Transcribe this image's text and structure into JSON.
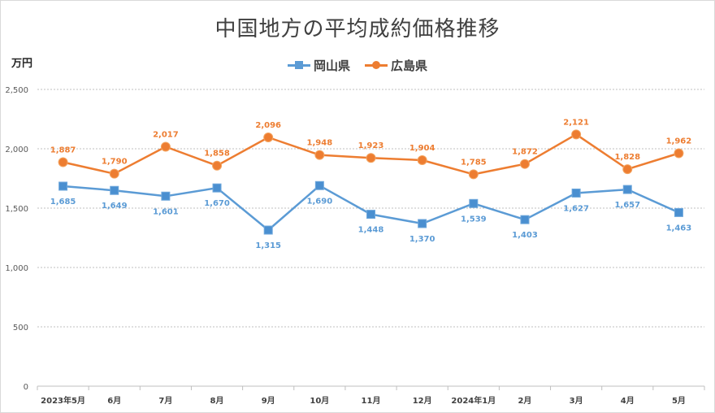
{
  "title": "中国地方の平均成約価格推移",
  "y_unit_label": "万円",
  "colors": {
    "okayama": "#5b9bd5",
    "okayama_marker": "#4a8fd0",
    "hiroshima": "#ed7d31",
    "grid": "#bfbfbf",
    "axis": "#bfbfbf",
    "tick_text": "#595959"
  },
  "legend": [
    {
      "name": "岡山県",
      "marker": "square",
      "color": "#5b9bd5"
    },
    {
      "name": "広島県",
      "marker": "circle",
      "color": "#ed7d31"
    }
  ],
  "chart_data": {
    "type": "line",
    "title": "中国地方の平均成約価格推移",
    "ylabel": "万円",
    "xlabel": "",
    "ylim": [
      0,
      2500
    ],
    "y_ticks": [
      0,
      500,
      1000,
      1500,
      2000,
      2500
    ],
    "y_tick_labels": [
      "0",
      "500",
      "1,000",
      "1,500",
      "2,000",
      "2,500"
    ],
    "grid": "horizontal dotted",
    "legend_position": "top",
    "categories": [
      "2023年5月",
      "6月",
      "7月",
      "8月",
      "9月",
      "10月",
      "11月",
      "12月",
      "2024年1月",
      "2月",
      "3月",
      "4月",
      "5月"
    ],
    "series": [
      {
        "name": "岡山県",
        "marker": "square",
        "color": "#5b9bd5",
        "values": [
          1685,
          1649,
          1601,
          1670,
          1315,
          1690,
          1448,
          1370,
          1539,
          1403,
          1627,
          1657,
          1463
        ],
        "labels": [
          "1,685",
          "1,649",
          "1,601",
          "1,670",
          "1,315",
          "1,690",
          "1,448",
          "1,370",
          "1,539",
          "1,403",
          "1,627",
          "1,657",
          "1,463"
        ]
      },
      {
        "name": "広島県",
        "marker": "circle",
        "color": "#ed7d31",
        "values": [
          1887,
          1790,
          2017,
          1858,
          2096,
          1948,
          1923,
          1904,
          1785,
          1872,
          2121,
          1828,
          1962
        ],
        "labels": [
          "1,887",
          "1,790",
          "2,017",
          "1,858",
          "2,096",
          "1,948",
          "1,923",
          "1,904",
          "1,785",
          "1,872",
          "2,121",
          "1,828",
          "1,962"
        ]
      }
    ]
  }
}
